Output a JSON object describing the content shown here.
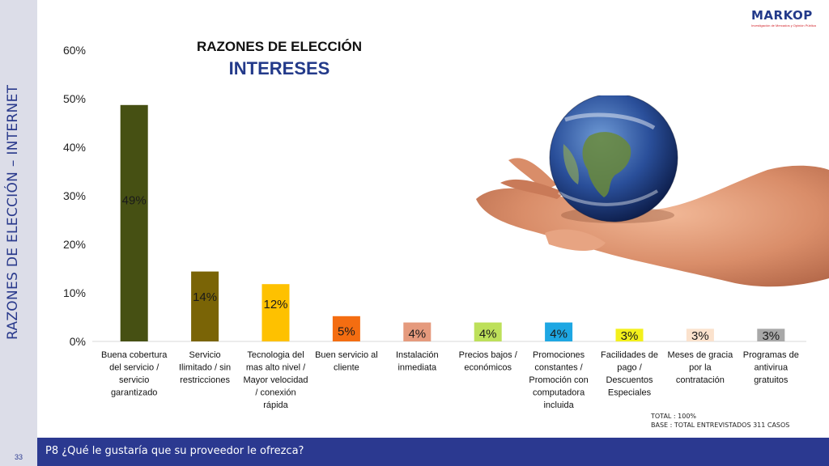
{
  "side_title": "RAZONES DE ELECCIÓN – INTERNET",
  "logo": {
    "name": "MARKOP",
    "tagline": "Investigación de Mercados y Opinión Pública"
  },
  "colors": {
    "brand_blue": "#2b3990",
    "title_blue": "#233a8a",
    "logo_red": "#d2232a",
    "side_band": "#dcdde8"
  },
  "chart_data": {
    "type": "bar",
    "title": "RAZONES DE ELECCIÓN",
    "subtitle": "INTERESES",
    "xlabel": "",
    "ylabel": "",
    "ylim": [
      0,
      60
    ],
    "yticks": [
      "0%",
      "10%",
      "20%",
      "30%",
      "40%",
      "50%",
      "60%"
    ],
    "grid": false,
    "categories": [
      "Buena cobertura del servicio / servicio garantizado",
      "Servicio Ilimitado / sin restricciones",
      "Tecnologia del mas alto nivel / Mayor velocidad / conexión rápida",
      "Buen servicio al cliente",
      "Instalación inmediata",
      "Precios bajos / económicos",
      "Promociones constantes / Promoción con computadora incluida",
      "Facilidades de pago / Descuentos Especiales",
      "Meses de gracia por la contratación",
      "Programas de antivirua gratuitos"
    ],
    "category_lines": [
      [
        "Buena cobertura",
        "del servicio /",
        "servicio",
        "garantizado"
      ],
      [
        "Servicio",
        "Ilimitado / sin",
        "restricciones"
      ],
      [
        "Tecnologia del",
        "mas alto nivel /",
        "Mayor velocidad",
        "/ conexión",
        "rápida"
      ],
      [
        "Buen servicio al",
        "cliente"
      ],
      [
        "Instalación",
        "inmediata"
      ],
      [
        "Precios bajos /",
        "económicos"
      ],
      [
        "Promociones",
        "constantes /",
        "Promoción con",
        "computadora",
        "incluida"
      ],
      [
        "Facilidades de",
        "pago /",
        "Descuentos",
        "Especiales"
      ],
      [
        "Meses de gracia",
        "por la",
        "contratación"
      ],
      [
        "Programas de",
        "antivirua",
        "gratuitos"
      ]
    ],
    "values": [
      48.7,
      14.4,
      11.8,
      5.2,
      3.9,
      3.9,
      3.9,
      2.6,
      2.6,
      2.6
    ],
    "value_labels": [
      "49%",
      "14%",
      "12%",
      "5%",
      "4%",
      "4%",
      "4%",
      "3%",
      "3%",
      "3%"
    ],
    "bar_colors": [
      "#465013",
      "#7a6406",
      "#fec100",
      "#f46d11",
      "#e59a7d",
      "#bde05a",
      "#1ea7e3",
      "#f3f01b",
      "#fbe2cd",
      "#a8a8a8"
    ]
  },
  "totals": {
    "total": "TOTAL : 100%",
    "base": "BASE   : TOTAL ENTREVISTADOS 311 CASOS"
  },
  "footer": {
    "page_number": "33",
    "question": "P8 ¿Qué le gustaría que su proveedor le ofrezca?"
  }
}
